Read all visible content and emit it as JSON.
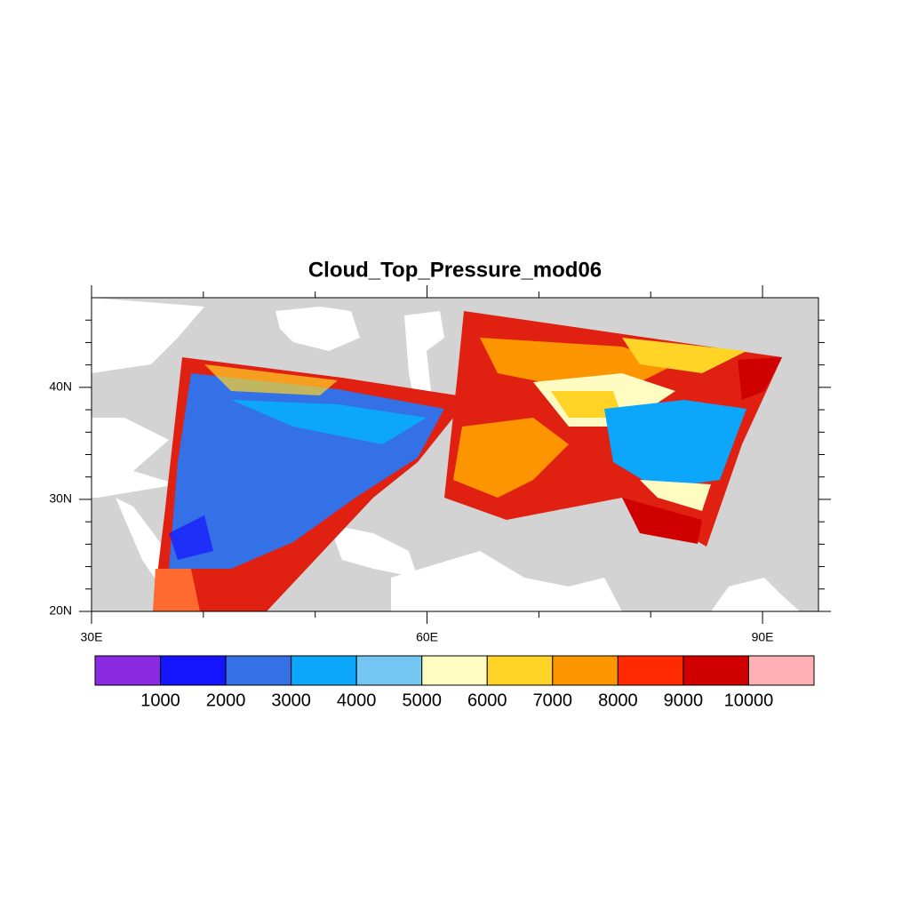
{
  "map": {
    "title": "Cloud_Top_Pressure_mod06",
    "xlim": [
      30,
      95
    ],
    "ylim": [
      20,
      48
    ],
    "xticks": [
      {
        "value": 30,
        "label": "30E"
      },
      {
        "value": 60,
        "label": "60E"
      },
      {
        "value": 90,
        "label": "90E"
      }
    ],
    "yticks": [
      {
        "value": 20,
        "label": "20N"
      },
      {
        "value": 30,
        "label": "30N"
      },
      {
        "value": 40,
        "label": "40N"
      }
    ],
    "xminorticks": [
      40,
      50,
      70,
      80
    ],
    "yminorticks": [
      22,
      24,
      26,
      28,
      32,
      34,
      36,
      38,
      42,
      44,
      46
    ],
    "colorbar": {
      "levels": [
        1000,
        2000,
        3000,
        4000,
        5000,
        6000,
        7000,
        8000,
        9000,
        10000
      ],
      "colors": [
        "#8a2be2",
        "#1414ff",
        "#3571e6",
        "#0ca6fb",
        "#74c7f2",
        "#fffcc1",
        "#ffd426",
        "#fd9500",
        "#ff2a00",
        "#d00000",
        "#ffb0b4"
      ]
    }
  }
}
